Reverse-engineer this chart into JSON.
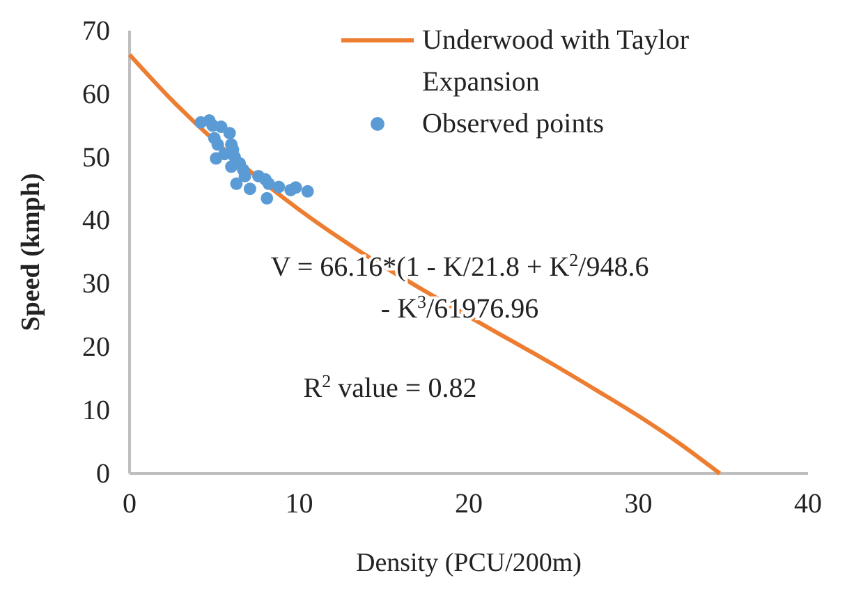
{
  "chart_data": {
    "type": "scatter",
    "xlabel": "Density  (PCU/200m)",
    "ylabel": "Speed (kmph)",
    "xlim": [
      0,
      40
    ],
    "xticks": [
      0,
      10,
      20,
      30,
      40
    ],
    "ylim": [
      0,
      70
    ],
    "yticks": [
      0,
      10,
      20,
      30,
      40,
      50,
      60,
      70
    ],
    "grid": false,
    "legend": "top right",
    "annotations": [
      "V = 66.16*(1 - K/21.8 + K$^{2}$/948.6",
      "- K$^{3}$/61976.96",
      "R$^{2}$ value = 0.82"
    ],
    "series": [
      {
        "name": "Underwood with Taylor Expansion",
        "type": "line",
        "color": "#ed7d31",
        "marker": "none",
        "x": [
          0,
          2.5,
          5,
          7.5,
          10,
          12.5,
          15,
          17.5,
          20,
          22.5,
          25,
          27.5,
          30,
          32.5,
          34.8
        ],
        "values": [
          66.2,
          59.0,
          52.6,
          46.9,
          41.7,
          37.0,
          32.7,
          28.7,
          24.8,
          21.0,
          17.2,
          13.2,
          9.1,
          4.6,
          0
        ]
      },
      {
        "name": "Observed points",
        "color": "#5b9bd5",
        "marker": "circle",
        "x": [
          4.2,
          4.5,
          4.7,
          4.9,
          5.0,
          5.2,
          5.1,
          5.9,
          6.0,
          6.1,
          6.2,
          6.0,
          6.3,
          6.5,
          6.7,
          6.8,
          7.0,
          7.1,
          7.3,
          7.6,
          7.9,
          8.0,
          8.1,
          8.2,
          8.8,
          9.5,
          9.8,
          10.5,
          5.4,
          5.6
        ],
        "values": [
          55.5,
          null,
          55.8,
          55,
          53,
          52,
          49.8,
          53.8,
          52,
          51.2,
          50,
          48.5,
          45.8,
          49,
          48,
          47,
          null,
          45,
          null,
          47,
          null,
          46.5,
          43.5,
          45.8,
          45.3,
          44.8,
          45.2,
          44.6,
          54.8,
          50.5
        ]
      }
    ]
  }
}
